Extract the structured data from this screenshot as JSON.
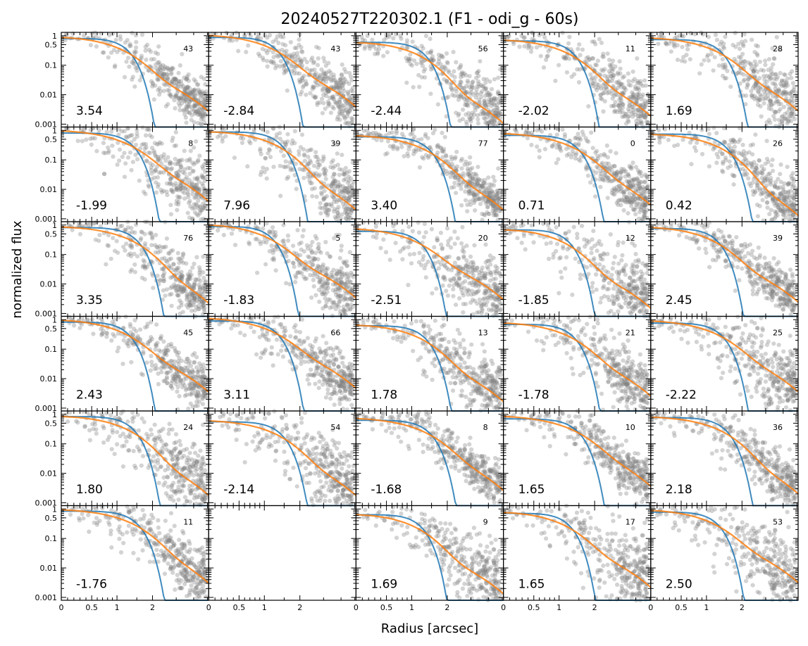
{
  "title": "20240527T220302.1 (F1 - odi_g - 60s)",
  "xlabel": "Radius [arcsec]",
  "ylabel": "normalized flux",
  "chart_data": {
    "type": "scatter",
    "grid": false,
    "rows": 6,
    "cols": 5,
    "x_axis": {
      "scale": "asinh",
      "range": [
        0,
        5.1
      ],
      "tick_values": [
        0,
        0.5,
        1,
        2
      ],
      "tick_labels": [
        "0",
        "0.5",
        "1",
        "2"
      ]
    },
    "y_axis": {
      "scale": "log",
      "range": [
        0.0008,
        1.3
      ],
      "tick_values": [
        0.001,
        0.01,
        0.1,
        0.5,
        1
      ],
      "tick_labels": [
        "0.001",
        "0.01",
        "0.1",
        "0.5",
        "1"
      ]
    },
    "colors": {
      "points": "#808080",
      "model_curve": "#ff7f0e",
      "alt_curve": "#1f77b4"
    },
    "panels": [
      {
        "row": 0,
        "col": 0,
        "value": "3.54",
        "count": "43",
        "has_data": true
      },
      {
        "row": 0,
        "col": 1,
        "value": "-2.84",
        "count": "43",
        "has_data": true
      },
      {
        "row": 0,
        "col": 2,
        "value": "-2.44",
        "count": "56",
        "has_data": true
      },
      {
        "row": 0,
        "col": 3,
        "value": "-2.02",
        "count": "11",
        "has_data": true
      },
      {
        "row": 0,
        "col": 4,
        "value": "1.69",
        "count": "28",
        "has_data": true
      },
      {
        "row": 1,
        "col": 0,
        "value": "-1.99",
        "count": "8",
        "has_data": true
      },
      {
        "row": 1,
        "col": 1,
        "value": "7.96",
        "count": "39",
        "has_data": true
      },
      {
        "row": 1,
        "col": 2,
        "value": "3.40",
        "count": "77",
        "has_data": true
      },
      {
        "row": 1,
        "col": 3,
        "value": "0.71",
        "count": "0",
        "has_data": true
      },
      {
        "row": 1,
        "col": 4,
        "value": "0.42",
        "count": "26",
        "has_data": true
      },
      {
        "row": 2,
        "col": 0,
        "value": "3.35",
        "count": "76",
        "has_data": true
      },
      {
        "row": 2,
        "col": 1,
        "value": "-1.83",
        "count": "5",
        "has_data": true
      },
      {
        "row": 2,
        "col": 2,
        "value": "-2.51",
        "count": "20",
        "has_data": true
      },
      {
        "row": 2,
        "col": 3,
        "value": "-1.85",
        "count": "12",
        "has_data": true
      },
      {
        "row": 2,
        "col": 4,
        "value": "2.45",
        "count": "39",
        "has_data": true
      },
      {
        "row": 3,
        "col": 0,
        "value": "2.43",
        "count": "45",
        "has_data": true
      },
      {
        "row": 3,
        "col": 1,
        "value": "3.11",
        "count": "66",
        "has_data": true
      },
      {
        "row": 3,
        "col": 2,
        "value": "1.78",
        "count": "13",
        "has_data": true
      },
      {
        "row": 3,
        "col": 3,
        "value": "-1.78",
        "count": "21",
        "has_data": true
      },
      {
        "row": 3,
        "col": 4,
        "value": "-2.22",
        "count": "25",
        "has_data": true
      },
      {
        "row": 4,
        "col": 0,
        "value": "1.80",
        "count": "24",
        "has_data": true
      },
      {
        "row": 4,
        "col": 1,
        "value": "-2.14",
        "count": "54",
        "has_data": true
      },
      {
        "row": 4,
        "col": 2,
        "value": "-1.68",
        "count": "8",
        "has_data": true
      },
      {
        "row": 4,
        "col": 3,
        "value": "1.65",
        "count": "10",
        "has_data": true
      },
      {
        "row": 4,
        "col": 4,
        "value": "2.18",
        "count": "36",
        "has_data": true
      },
      {
        "row": 5,
        "col": 0,
        "value": "-1.76",
        "count": "11",
        "has_data": true
      },
      {
        "row": 5,
        "col": 1,
        "value": "",
        "count": "",
        "has_data": false
      },
      {
        "row": 5,
        "col": 2,
        "value": "1.69",
        "count": "9",
        "has_data": true
      },
      {
        "row": 5,
        "col": 3,
        "value": "1.65",
        "count": "17",
        "has_data": true
      },
      {
        "row": 5,
        "col": 4,
        "value": "2.50",
        "count": "53",
        "has_data": true
      }
    ]
  }
}
